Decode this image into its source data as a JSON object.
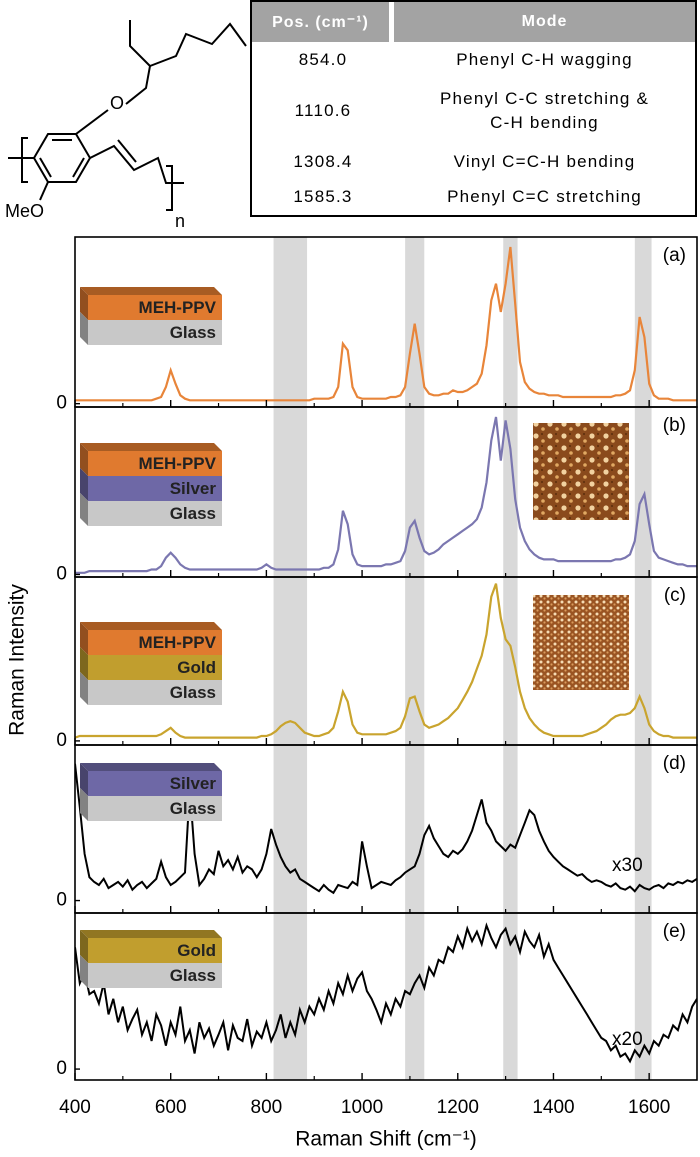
{
  "structure": {
    "labels": [
      "O",
      "MeO",
      "n"
    ]
  },
  "table": {
    "header": [
      "Pos. (cm⁻¹)",
      "Mode"
    ],
    "rows": [
      [
        "854.0",
        "Phenyl C-H wagging"
      ],
      [
        "1110.6",
        "Phenyl C-C stretching &\nC-H bending"
      ],
      [
        "1308.4",
        "Vinyl C=C-H bending"
      ],
      [
        "1585.3",
        "Phenyl C=C stretching"
      ]
    ]
  },
  "chart_data": {
    "type": "line",
    "xlabel": "Raman Shift (cm⁻¹)",
    "ylabel": "Raman Intensity",
    "xlim": [
      400,
      1700
    ],
    "xticks": [
      400,
      600,
      800,
      1000,
      1200,
      1400,
      1600
    ],
    "xminor": [
      500,
      700,
      900,
      1100,
      1300,
      1500
    ],
    "shaded_bands": [
      [
        815,
        885
      ],
      [
        1090,
        1130
      ],
      [
        1295,
        1325
      ],
      [
        1570,
        1605
      ]
    ],
    "band_color": "#d9d9d9",
    "x": [
      400,
      410,
      420,
      430,
      440,
      450,
      460,
      470,
      480,
      490,
      500,
      510,
      520,
      530,
      540,
      550,
      560,
      570,
      580,
      590,
      600,
      610,
      620,
      630,
      640,
      650,
      660,
      670,
      680,
      690,
      700,
      710,
      720,
      730,
      740,
      750,
      760,
      770,
      780,
      790,
      800,
      810,
      820,
      830,
      840,
      850,
      860,
      870,
      880,
      890,
      900,
      910,
      920,
      930,
      940,
      950,
      960,
      970,
      980,
      990,
      1000,
      1010,
      1020,
      1030,
      1040,
      1050,
      1060,
      1070,
      1080,
      1090,
      1100,
      1110,
      1120,
      1130,
      1140,
      1150,
      1160,
      1170,
      1180,
      1190,
      1200,
      1210,
      1220,
      1230,
      1240,
      1250,
      1260,
      1270,
      1280,
      1290,
      1300,
      1310,
      1320,
      1330,
      1340,
      1350,
      1360,
      1370,
      1380,
      1390,
      1400,
      1410,
      1420,
      1430,
      1440,
      1450,
      1460,
      1470,
      1480,
      1490,
      1500,
      1510,
      1520,
      1530,
      1540,
      1550,
      1560,
      1570,
      1580,
      1590,
      1600,
      1610,
      1620,
      1630,
      1640,
      1650,
      1660,
      1670,
      1680,
      1690,
      1700
    ],
    "panels": [
      {
        "label": "(a)",
        "color": "#e8853a",
        "ylim": [
          -0.02,
          1
        ],
        "yticks": [
          0
        ],
        "layers": [
          {
            "name": "MEH-PPV",
            "color": "#e07a2f"
          },
          {
            "name": "Glass",
            "color": "#c8c8c8"
          }
        ],
        "values": [
          0.02,
          0.02,
          0.02,
          0.02,
          0.02,
          0.02,
          0.02,
          0.02,
          0.02,
          0.02,
          0.02,
          0.02,
          0.02,
          0.02,
          0.02,
          0.02,
          0.02,
          0.03,
          0.04,
          0.1,
          0.2,
          0.12,
          0.05,
          0.03,
          0.02,
          0.02,
          0.02,
          0.02,
          0.02,
          0.02,
          0.02,
          0.02,
          0.02,
          0.02,
          0.02,
          0.02,
          0.02,
          0.02,
          0.02,
          0.02,
          0.02,
          0.02,
          0.02,
          0.02,
          0.02,
          0.02,
          0.02,
          0.02,
          0.02,
          0.02,
          0.03,
          0.03,
          0.03,
          0.03,
          0.04,
          0.1,
          0.36,
          0.32,
          0.1,
          0.04,
          0.03,
          0.03,
          0.03,
          0.03,
          0.03,
          0.03,
          0.04,
          0.04,
          0.05,
          0.1,
          0.3,
          0.48,
          0.3,
          0.1,
          0.06,
          0.05,
          0.05,
          0.06,
          0.06,
          0.08,
          0.07,
          0.07,
          0.08,
          0.1,
          0.12,
          0.18,
          0.35,
          0.62,
          0.72,
          0.55,
          0.72,
          0.94,
          0.6,
          0.25,
          0.13,
          0.09,
          0.07,
          0.06,
          0.06,
          0.05,
          0.05,
          0.05,
          0.04,
          0.04,
          0.04,
          0.04,
          0.04,
          0.04,
          0.04,
          0.04,
          0.04,
          0.04,
          0.04,
          0.05,
          0.05,
          0.06,
          0.08,
          0.2,
          0.52,
          0.4,
          0.12,
          0.05,
          0.03,
          0.03,
          0.03,
          0.02,
          0.02,
          0.02,
          0.02,
          0.02,
          0.02
        ]
      },
      {
        "label": "(b)",
        "color": "#7b77b0",
        "ylim": [
          -0.015,
          1
        ],
        "yticks": [
          0
        ],
        "layers": [
          {
            "name": "MEH-PPV",
            "color": "#e07a2f"
          },
          {
            "name": "Silver",
            "color": "#6e68a6"
          },
          {
            "name": "Glass",
            "color": "#c8c8c8"
          }
        ],
        "values": [
          0.01,
          0.01,
          0.01,
          0.02,
          0.02,
          0.02,
          0.02,
          0.02,
          0.02,
          0.02,
          0.02,
          0.02,
          0.02,
          0.02,
          0.02,
          0.02,
          0.03,
          0.03,
          0.05,
          0.1,
          0.13,
          0.1,
          0.06,
          0.04,
          0.03,
          0.03,
          0.03,
          0.03,
          0.03,
          0.03,
          0.03,
          0.03,
          0.03,
          0.03,
          0.03,
          0.03,
          0.03,
          0.03,
          0.03,
          0.04,
          0.06,
          0.04,
          0.03,
          0.03,
          0.03,
          0.03,
          0.03,
          0.03,
          0.03,
          0.03,
          0.03,
          0.03,
          0.04,
          0.04,
          0.06,
          0.15,
          0.38,
          0.3,
          0.12,
          0.06,
          0.05,
          0.05,
          0.05,
          0.05,
          0.05,
          0.06,
          0.06,
          0.07,
          0.08,
          0.14,
          0.28,
          0.32,
          0.22,
          0.14,
          0.12,
          0.13,
          0.15,
          0.18,
          0.2,
          0.22,
          0.24,
          0.26,
          0.28,
          0.3,
          0.33,
          0.4,
          0.55,
          0.8,
          0.94,
          0.68,
          0.92,
          0.75,
          0.45,
          0.28,
          0.2,
          0.15,
          0.12,
          0.1,
          0.09,
          0.09,
          0.09,
          0.08,
          0.08,
          0.08,
          0.08,
          0.08,
          0.08,
          0.08,
          0.08,
          0.08,
          0.08,
          0.08,
          0.08,
          0.09,
          0.09,
          0.1,
          0.12,
          0.2,
          0.42,
          0.48,
          0.3,
          0.14,
          0.1,
          0.09,
          0.08,
          0.07,
          0.06,
          0.06,
          0.05,
          0.05,
          0.05
        ]
      },
      {
        "label": "(c)",
        "color": "#c9a42e",
        "ylim": [
          -0.025,
          1
        ],
        "yticks": [
          0
        ],
        "layers": [
          {
            "name": "MEH-PPV",
            "color": "#e07a2f"
          },
          {
            "name": "Gold",
            "color": "#c19e2e"
          },
          {
            "name": "Glass",
            "color": "#c8c8c8"
          }
        ],
        "values": [
          0.02,
          0.03,
          0.03,
          0.03,
          0.03,
          0.03,
          0.03,
          0.03,
          0.03,
          0.03,
          0.03,
          0.03,
          0.03,
          0.03,
          0.03,
          0.03,
          0.03,
          0.03,
          0.04,
          0.06,
          0.08,
          0.05,
          0.03,
          0.02,
          0.02,
          0.02,
          0.02,
          0.02,
          0.02,
          0.02,
          0.02,
          0.02,
          0.02,
          0.02,
          0.02,
          0.02,
          0.02,
          0.02,
          0.02,
          0.03,
          0.03,
          0.04,
          0.06,
          0.09,
          0.11,
          0.12,
          0.11,
          0.08,
          0.05,
          0.04,
          0.03,
          0.03,
          0.04,
          0.05,
          0.08,
          0.18,
          0.3,
          0.24,
          0.1,
          0.05,
          0.04,
          0.04,
          0.04,
          0.04,
          0.04,
          0.04,
          0.05,
          0.06,
          0.08,
          0.15,
          0.26,
          0.27,
          0.18,
          0.1,
          0.08,
          0.09,
          0.1,
          0.12,
          0.14,
          0.17,
          0.2,
          0.25,
          0.3,
          0.36,
          0.44,
          0.52,
          0.65,
          0.88,
          0.96,
          0.75,
          0.62,
          0.58,
          0.45,
          0.3,
          0.2,
          0.14,
          0.1,
          0.07,
          0.05,
          0.04,
          0.03,
          0.03,
          0.03,
          0.03,
          0.03,
          0.03,
          0.03,
          0.04,
          0.05,
          0.06,
          0.08,
          0.1,
          0.13,
          0.15,
          0.16,
          0.16,
          0.17,
          0.2,
          0.27,
          0.2,
          0.1,
          0.06,
          0.04,
          0.03,
          0.03,
          0.02,
          0.02,
          0.02,
          0.02,
          0.02,
          0.02
        ]
      },
      {
        "label": "(d)",
        "color": "#000000",
        "ylim": [
          -0.08,
          1
        ],
        "yticks": [
          0
        ],
        "annotation": "x30",
        "layers": [
          {
            "name": "Silver",
            "color": "#6e68a6"
          },
          {
            "name": "Glass",
            "color": "#c8c8c8"
          }
        ],
        "values": [
          0.88,
          0.6,
          0.3,
          0.15,
          0.12,
          0.1,
          0.14,
          0.08,
          0.1,
          0.12,
          0.09,
          0.13,
          0.07,
          0.1,
          0.12,
          0.08,
          0.11,
          0.14,
          0.25,
          0.15,
          0.1,
          0.12,
          0.15,
          0.18,
          0.72,
          0.3,
          0.1,
          0.14,
          0.2,
          0.17,
          0.32,
          0.22,
          0.26,
          0.2,
          0.28,
          0.18,
          0.22,
          0.2,
          0.15,
          0.2,
          0.3,
          0.46,
          0.36,
          0.28,
          0.22,
          0.18,
          0.2,
          0.14,
          0.12,
          0.1,
          0.08,
          0.06,
          0.1,
          0.07,
          0.05,
          0.1,
          0.09,
          0.08,
          0.12,
          0.1,
          0.38,
          0.22,
          0.08,
          0.1,
          0.12,
          0.11,
          0.1,
          0.13,
          0.15,
          0.18,
          0.2,
          0.22,
          0.3,
          0.42,
          0.48,
          0.4,
          0.35,
          0.3,
          0.28,
          0.32,
          0.3,
          0.33,
          0.38,
          0.45,
          0.55,
          0.65,
          0.5,
          0.45,
          0.38,
          0.35,
          0.32,
          0.36,
          0.34,
          0.42,
          0.5,
          0.58,
          0.55,
          0.45,
          0.38,
          0.32,
          0.28,
          0.25,
          0.22,
          0.2,
          0.18,
          0.16,
          0.17,
          0.14,
          0.12,
          0.13,
          0.12,
          0.1,
          0.09,
          0.11,
          0.08,
          0.07,
          0.09,
          0.06,
          0.1,
          0.08,
          0.07,
          0.09,
          0.1,
          0.08,
          0.11,
          0.1,
          0.12,
          0.11,
          0.13,
          0.12,
          0.14
        ]
      },
      {
        "label": "(e)",
        "color": "#000000",
        "ylim": [
          -0.07,
          1
        ],
        "yticks": [
          0
        ],
        "annotation": "x20",
        "layers": [
          {
            "name": "Gold",
            "color": "#c19e2e"
          },
          {
            "name": "Glass",
            "color": "#c8c8c8"
          }
        ],
        "values": [
          0.78,
          0.55,
          0.62,
          0.48,
          0.5,
          0.42,
          0.55,
          0.35,
          0.45,
          0.3,
          0.4,
          0.25,
          0.32,
          0.38,
          0.22,
          0.3,
          0.18,
          0.35,
          0.28,
          0.15,
          0.3,
          0.22,
          0.4,
          0.18,
          0.25,
          0.1,
          0.3,
          0.2,
          0.26,
          0.15,
          0.22,
          0.3,
          0.12,
          0.28,
          0.2,
          0.18,
          0.32,
          0.15,
          0.24,
          0.2,
          0.3,
          0.18,
          0.25,
          0.35,
          0.2,
          0.3,
          0.22,
          0.38,
          0.3,
          0.4,
          0.35,
          0.45,
          0.38,
          0.5,
          0.42,
          0.55,
          0.48,
          0.6,
          0.5,
          0.58,
          0.62,
          0.5,
          0.45,
          0.38,
          0.3,
          0.42,
          0.35,
          0.45,
          0.4,
          0.5,
          0.48,
          0.55,
          0.6,
          0.52,
          0.65,
          0.6,
          0.7,
          0.68,
          0.78,
          0.75,
          0.85,
          0.78,
          0.9,
          0.82,
          0.88,
          0.8,
          0.92,
          0.84,
          0.78,
          0.86,
          0.9,
          0.8,
          0.85,
          0.75,
          0.88,
          0.82,
          0.78,
          0.86,
          0.72,
          0.8,
          0.7,
          0.65,
          0.6,
          0.55,
          0.5,
          0.45,
          0.4,
          0.35,
          0.3,
          0.25,
          0.2,
          0.18,
          0.12,
          0.15,
          0.08,
          0.1,
          0.05,
          0.12,
          0.08,
          0.15,
          0.1,
          0.18,
          0.15,
          0.22,
          0.2,
          0.28,
          0.25,
          0.35,
          0.3,
          0.4,
          0.45
        ]
      }
    ]
  }
}
